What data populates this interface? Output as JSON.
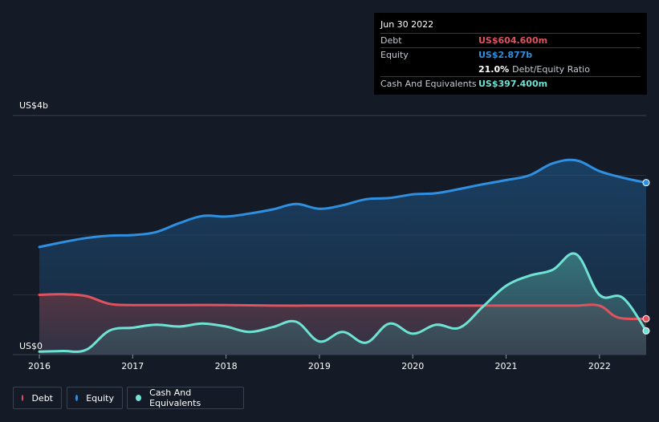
{
  "tooltip": {
    "date": "Jun 30 2022",
    "debt_label": "Debt",
    "debt_value": "US$604.600m",
    "equity_label": "Equity",
    "equity_value": "US$2.877b",
    "ratio_value": "21.0%",
    "ratio_label": "Debt/Equity Ratio",
    "cash_label": "Cash And Equivalents",
    "cash_value": "US$397.400m"
  },
  "colors": {
    "debt": "#e0525e",
    "equity": "#2f8fe0",
    "cash": "#6fe3d3"
  },
  "legend": [
    {
      "key": "debt",
      "label": "Debt"
    },
    {
      "key": "equity",
      "label": "Equity"
    },
    {
      "key": "cash",
      "label": "Cash And Equivalents"
    }
  ],
  "chart_data": {
    "type": "area",
    "ylabel_top": "US$4b",
    "ylabel_bottom": "US$0",
    "ylim": [
      0,
      4
    ],
    "xlim": [
      2016,
      2022.5
    ],
    "x_ticks": [
      "2016",
      "2017",
      "2018",
      "2019",
      "2020",
      "2021",
      "2022"
    ],
    "grid": true,
    "legend_position": "bottom-left",
    "series": [
      {
        "name": "Debt",
        "key": "debt",
        "points": [
          [
            2016,
            1.0
          ],
          [
            2016.25,
            1.01
          ],
          [
            2016.5,
            0.98
          ],
          [
            2016.75,
            0.85
          ],
          [
            2017,
            0.83
          ],
          [
            2017.5,
            0.83
          ],
          [
            2018,
            0.83
          ],
          [
            2018.5,
            0.82
          ],
          [
            2019,
            0.82
          ],
          [
            2019.5,
            0.82
          ],
          [
            2020,
            0.82
          ],
          [
            2020.5,
            0.82
          ],
          [
            2021,
            0.82
          ],
          [
            2021.5,
            0.82
          ],
          [
            2021.75,
            0.82
          ],
          [
            2022,
            0.82
          ],
          [
            2022.2,
            0.62
          ],
          [
            2022.5,
            0.6
          ]
        ]
      },
      {
        "name": "Equity",
        "key": "equity",
        "points": [
          [
            2016,
            1.8
          ],
          [
            2016.25,
            1.88
          ],
          [
            2016.5,
            1.95
          ],
          [
            2016.75,
            1.99
          ],
          [
            2017,
            2.0
          ],
          [
            2017.25,
            2.05
          ],
          [
            2017.5,
            2.2
          ],
          [
            2017.75,
            2.32
          ],
          [
            2018,
            2.31
          ],
          [
            2018.25,
            2.36
          ],
          [
            2018.5,
            2.43
          ],
          [
            2018.75,
            2.52
          ],
          [
            2019,
            2.44
          ],
          [
            2019.25,
            2.5
          ],
          [
            2019.5,
            2.6
          ],
          [
            2019.75,
            2.62
          ],
          [
            2020,
            2.68
          ],
          [
            2020.25,
            2.7
          ],
          [
            2020.5,
            2.77
          ],
          [
            2020.75,
            2.85
          ],
          [
            2021,
            2.92
          ],
          [
            2021.25,
            3.0
          ],
          [
            2021.5,
            3.2
          ],
          [
            2021.75,
            3.25
          ],
          [
            2022,
            3.07
          ],
          [
            2022.25,
            2.96
          ],
          [
            2022.5,
            2.877
          ]
        ]
      },
      {
        "name": "Cash And Equivalents",
        "key": "cash",
        "points": [
          [
            2016,
            0.05
          ],
          [
            2016.25,
            0.06
          ],
          [
            2016.5,
            0.08
          ],
          [
            2016.75,
            0.4
          ],
          [
            2017,
            0.45
          ],
          [
            2017.25,
            0.5
          ],
          [
            2017.5,
            0.47
          ],
          [
            2017.75,
            0.52
          ],
          [
            2018,
            0.47
          ],
          [
            2018.25,
            0.38
          ],
          [
            2018.5,
            0.46
          ],
          [
            2018.75,
            0.55
          ],
          [
            2019,
            0.22
          ],
          [
            2019.25,
            0.38
          ],
          [
            2019.5,
            0.2
          ],
          [
            2019.75,
            0.52
          ],
          [
            2020,
            0.35
          ],
          [
            2020.25,
            0.5
          ],
          [
            2020.5,
            0.45
          ],
          [
            2020.75,
            0.8
          ],
          [
            2021,
            1.15
          ],
          [
            2021.25,
            1.32
          ],
          [
            2021.5,
            1.42
          ],
          [
            2021.75,
            1.68
          ],
          [
            2022,
            1.0
          ],
          [
            2022.25,
            0.95
          ],
          [
            2022.5,
            0.397
          ]
        ]
      }
    ]
  }
}
